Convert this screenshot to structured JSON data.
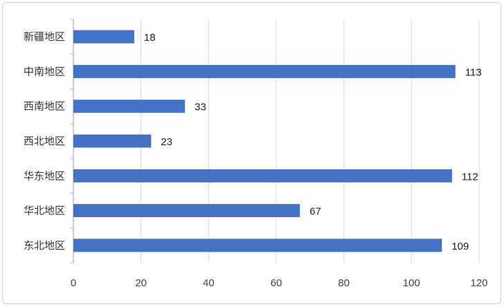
{
  "chart_data": {
    "type": "bar",
    "orientation": "horizontal",
    "categories": [
      "新疆地区",
      "中南地区",
      "西南地区",
      "西北地区",
      "华东地区",
      "华北地区",
      "东北地区"
    ],
    "values": [
      18,
      113,
      33,
      23,
      112,
      67,
      109
    ],
    "xlim": [
      0,
      120
    ],
    "xticks": [
      0,
      20,
      40,
      60,
      80,
      100,
      120
    ],
    "grid": true,
    "bar_color": "#4472c4",
    "grid_color": "#d9d9d9",
    "legend": "none"
  }
}
